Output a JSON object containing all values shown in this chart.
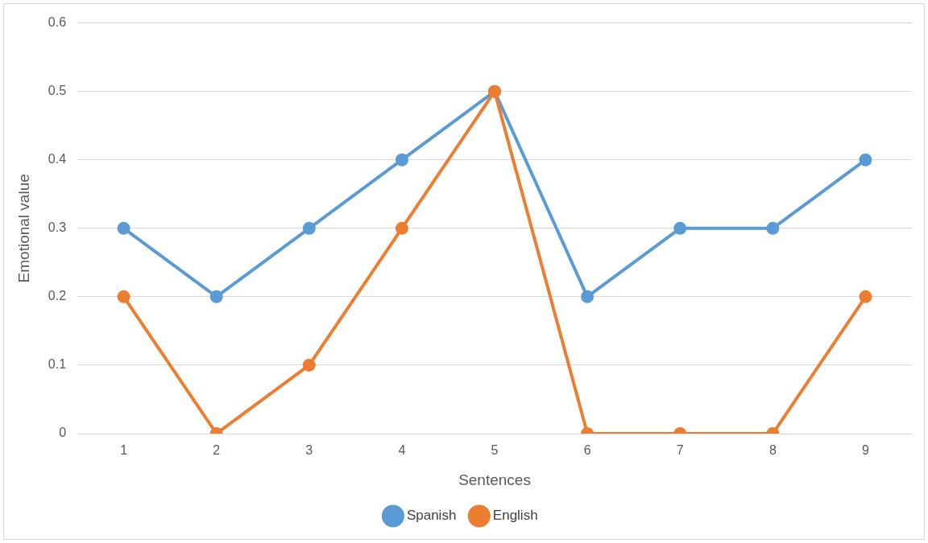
{
  "chart_data": {
    "type": "line",
    "xlabel": "Sentences",
    "ylabel": "Emotional value",
    "categories": [
      "1",
      "2",
      "3",
      "4",
      "5",
      "6",
      "7",
      "8",
      "9"
    ],
    "series": [
      {
        "name": "Spanish",
        "color": "#5b9bd5",
        "values": [
          0.3,
          0.2,
          0.3,
          0.4,
          0.5,
          0.2,
          0.3,
          0.3,
          0.4
        ]
      },
      {
        "name": "English",
        "color": "#ed7d31",
        "values": [
          0.2,
          0,
          0.1,
          0.3,
          0.5,
          0,
          0,
          0,
          0.2
        ]
      }
    ],
    "ylim": [
      0,
      0.6
    ],
    "yticks": [
      0,
      0.1,
      0.2,
      0.3,
      0.4,
      0.5,
      0.6
    ],
    "grid": "y",
    "legend": "bottom",
    "marker": "circle",
    "line_style": "solid"
  }
}
